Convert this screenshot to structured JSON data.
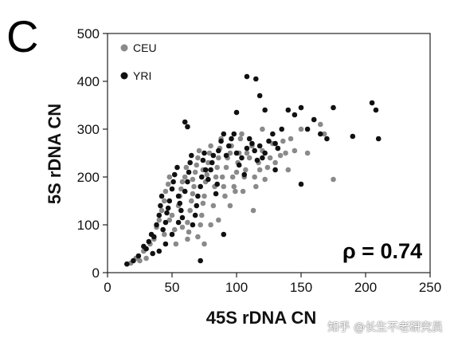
{
  "panel_letter": "C",
  "annotation": "ρ = 0.74",
  "watermark": "知乎 @长生不老研究员",
  "chart_data": {
    "type": "scatter",
    "title": "",
    "xlabel": "45S rDNA CN",
    "ylabel": "5S rDNA CN",
    "xlim": [
      0,
      250
    ],
    "ylim": [
      0,
      500
    ],
    "xticks": [
      0,
      50,
      100,
      150,
      200,
      250
    ],
    "yticks": [
      0,
      100,
      200,
      300,
      400,
      500
    ],
    "grid": false,
    "legend_position": "top-left",
    "colors": {
      "CEU": "#8a8a8a",
      "YRI": "#111111"
    },
    "series": [
      {
        "name": "CEU",
        "points": [
          [
            18,
            20
          ],
          [
            22,
            30
          ],
          [
            28,
            45
          ],
          [
            33,
            60
          ],
          [
            36,
            70
          ],
          [
            38,
            95
          ],
          [
            40,
            110
          ],
          [
            42,
            130
          ],
          [
            44,
            150
          ],
          [
            45,
            170
          ],
          [
            47,
            185
          ],
          [
            48,
            200
          ],
          [
            50,
            120
          ],
          [
            52,
            90
          ],
          [
            53,
            60
          ],
          [
            55,
            140
          ],
          [
            56,
            160
          ],
          [
            57,
            175
          ],
          [
            58,
            190
          ],
          [
            60,
            200
          ],
          [
            61,
            220
          ],
          [
            62,
            105
          ],
          [
            63,
            85
          ],
          [
            64,
            130
          ],
          [
            65,
            150
          ],
          [
            66,
            165
          ],
          [
            67,
            180
          ],
          [
            68,
            210
          ],
          [
            69,
            225
          ],
          [
            70,
            240
          ],
          [
            71,
            255
          ],
          [
            72,
            100
          ],
          [
            73,
            120
          ],
          [
            74,
            145
          ],
          [
            75,
            160
          ],
          [
            76,
            190
          ],
          [
            77,
            205
          ],
          [
            78,
            230
          ],
          [
            79,
            250
          ],
          [
            80,
            265
          ],
          [
            82,
            140
          ],
          [
            83,
            180
          ],
          [
            84,
            200
          ],
          [
            85,
            220
          ],
          [
            86,
            240
          ],
          [
            87,
            260
          ],
          [
            88,
            280
          ],
          [
            89,
            200
          ],
          [
            90,
            180
          ],
          [
            91,
            160
          ],
          [
            92,
            220
          ],
          [
            93,
            240
          ],
          [
            95,
            250
          ],
          [
            96,
            265
          ],
          [
            97,
            200
          ],
          [
            98,
            180
          ],
          [
            99,
            170
          ],
          [
            100,
            210
          ],
          [
            101,
            230
          ],
          [
            102,
            250
          ],
          [
            103,
            280
          ],
          [
            104,
            290
          ],
          [
            105,
            170
          ],
          [
            106,
            200
          ],
          [
            107,
            215
          ],
          [
            108,
            250
          ],
          [
            110,
            240
          ],
          [
            112,
            265
          ],
          [
            114,
            200
          ],
          [
            115,
            180
          ],
          [
            117,
            230
          ],
          [
            118,
            215
          ],
          [
            120,
            255
          ],
          [
            122,
            195
          ],
          [
            124,
            220
          ],
          [
            126,
            240
          ],
          [
            128,
            270
          ],
          [
            130,
            230
          ],
          [
            132,
            260
          ],
          [
            134,
            245
          ],
          [
            136,
            275
          ],
          [
            138,
            250
          ],
          [
            140,
            215
          ],
          [
            142,
            280
          ],
          [
            145,
            255
          ],
          [
            150,
            300
          ],
          [
            155,
            250
          ],
          [
            160,
            320
          ],
          [
            165,
            310
          ],
          [
            168,
            290
          ],
          [
            175,
            195
          ],
          [
            120,
            300
          ],
          [
            113,
            130
          ],
          [
            95,
            140
          ],
          [
            86,
            110
          ],
          [
            80,
            100
          ],
          [
            62,
            70
          ],
          [
            58,
            95
          ],
          [
            48,
            110
          ],
          [
            44,
            80
          ],
          [
            70,
            75
          ],
          [
            75,
            60
          ],
          [
            30,
            30
          ],
          [
            25,
            25
          ],
          [
            66,
            195
          ],
          [
            74,
            215
          ]
        ]
      },
      {
        "name": "YRI",
        "points": [
          [
            15,
            18
          ],
          [
            20,
            25
          ],
          [
            24,
            35
          ],
          [
            28,
            55
          ],
          [
            30,
            50
          ],
          [
            32,
            65
          ],
          [
            34,
            80
          ],
          [
            36,
            75
          ],
          [
            38,
            100
          ],
          [
            40,
            120
          ],
          [
            41,
            140
          ],
          [
            42,
            160
          ],
          [
            43,
            90
          ],
          [
            45,
            105
          ],
          [
            46,
            125
          ],
          [
            47,
            135
          ],
          [
            48,
            150
          ],
          [
            50,
            175
          ],
          [
            51,
            190
          ],
          [
            52,
            205
          ],
          [
            54,
            220
          ],
          [
            55,
            160
          ],
          [
            56,
            145
          ],
          [
            57,
            130
          ],
          [
            58,
            115
          ],
          [
            60,
            170
          ],
          [
            62,
            190
          ],
          [
            63,
            210
          ],
          [
            64,
            230
          ],
          [
            65,
            245
          ],
          [
            66,
            100
          ],
          [
            68,
            120
          ],
          [
            69,
            140
          ],
          [
            70,
            160
          ],
          [
            72,
            180
          ],
          [
            73,
            200
          ],
          [
            74,
            235
          ],
          [
            75,
            250
          ],
          [
            76,
            215
          ],
          [
            78,
            195
          ],
          [
            80,
            215
          ],
          [
            81,
            230
          ],
          [
            82,
            245
          ],
          [
            84,
            165
          ],
          [
            85,
            185
          ],
          [
            86,
            255
          ],
          [
            88,
            275
          ],
          [
            90,
            290
          ],
          [
            92,
            245
          ],
          [
            94,
            265
          ],
          [
            96,
            280
          ],
          [
            98,
            290
          ],
          [
            100,
            250
          ],
          [
            102,
            225
          ],
          [
            104,
            240
          ],
          [
            106,
            205
          ],
          [
            108,
            260
          ],
          [
            110,
            280
          ],
          [
            112,
            270
          ],
          [
            114,
            255
          ],
          [
            116,
            235
          ],
          [
            118,
            265
          ],
          [
            120,
            240
          ],
          [
            122,
            250
          ],
          [
            125,
            275
          ],
          [
            128,
            290
          ],
          [
            130,
            270
          ],
          [
            132,
            260
          ],
          [
            135,
            300
          ],
          [
            140,
            340
          ],
          [
            145,
            330
          ],
          [
            150,
            345
          ],
          [
            155,
            300
          ],
          [
            160,
            320
          ],
          [
            165,
            290
          ],
          [
            170,
            280
          ],
          [
            175,
            345
          ],
          [
            190,
            285
          ],
          [
            205,
            355
          ],
          [
            208,
            340
          ],
          [
            210,
            280
          ],
          [
            108,
            410
          ],
          [
            115,
            405
          ],
          [
            118,
            370
          ],
          [
            122,
            340
          ],
          [
            100,
            335
          ],
          [
            60,
            315
          ],
          [
            62,
            305
          ],
          [
            55,
            105
          ],
          [
            50,
            80
          ],
          [
            45,
            60
          ],
          [
            40,
            45
          ],
          [
            35,
            40
          ],
          [
            72,
            25
          ],
          [
            90,
            80
          ],
          [
            150,
            185
          ],
          [
            130,
            215
          ]
        ]
      }
    ]
  }
}
